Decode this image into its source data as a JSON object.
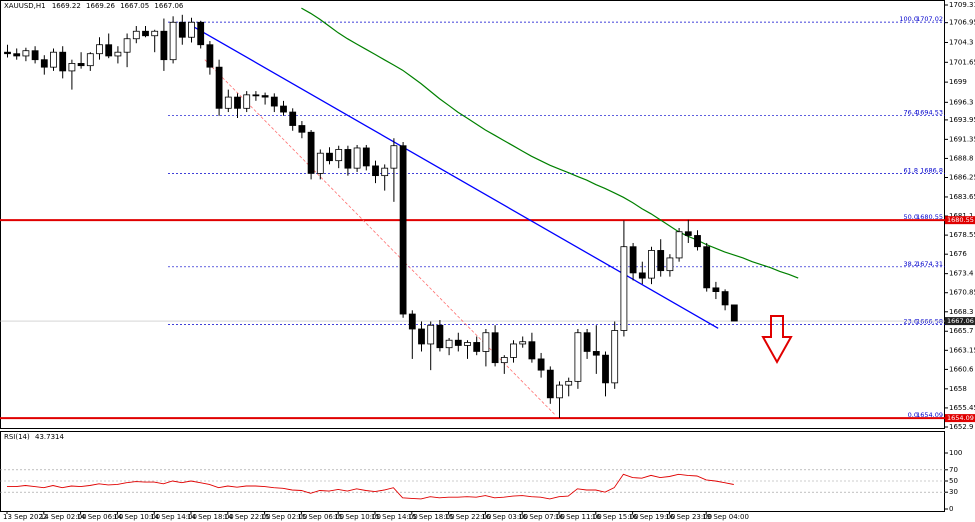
{
  "chart_data": {
    "type": "candlestick",
    "symbol": "XAUUSD,H1",
    "candles": [
      [
        1703.0,
        1704.0,
        1702.3,
        1702.8
      ],
      [
        1702.8,
        1703.5,
        1702.0,
        1702.5
      ],
      [
        1702.5,
        1703.6,
        1701.8,
        1703.2
      ],
      [
        1703.2,
        1703.8,
        1701.5,
        1702.0
      ],
      [
        1702.0,
        1702.6,
        1700.0,
        1701.0
      ],
      [
        1701.0,
        1703.5,
        1700.5,
        1703.0
      ],
      [
        1703.0,
        1703.8,
        1699.5,
        1700.5
      ],
      [
        1700.5,
        1702.0,
        1698.0,
        1701.5
      ],
      [
        1701.5,
        1703.0,
        1700.8,
        1701.2
      ],
      [
        1701.2,
        1703.0,
        1700.5,
        1702.8
      ],
      [
        1702.8,
        1705.0,
        1702.0,
        1704.0
      ],
      [
        1704.0,
        1705.5,
        1702.2,
        1702.5
      ],
      [
        1702.5,
        1703.8,
        1701.5,
        1703.0
      ],
      [
        1703.0,
        1705.5,
        1701.0,
        1704.8
      ],
      [
        1704.8,
        1706.5,
        1704.2,
        1705.8
      ],
      [
        1705.8,
        1706.5,
        1705.0,
        1705.2
      ],
      [
        1705.2,
        1706.0,
        1703.0,
        1705.8
      ],
      [
        1705.8,
        1707.5,
        1700.5,
        1702.0
      ],
      [
        1702.0,
        1707.8,
        1701.5,
        1707.0
      ],
      [
        1707.0,
        1708.0,
        1704.0,
        1705.0
      ],
      [
        1705.0,
        1707.6,
        1704.3,
        1707.0
      ],
      [
        1707.0,
        1707.2,
        1703.5,
        1704.0
      ],
      [
        1704.0,
        1704.5,
        1700.0,
        1701.0
      ],
      [
        1701.0,
        1702.0,
        1694.5,
        1695.5
      ],
      [
        1695.5,
        1698.0,
        1695.0,
        1697.0
      ],
      [
        1697.0,
        1697.5,
        1694.2,
        1695.5
      ],
      [
        1695.5,
        1697.8,
        1695.0,
        1697.3
      ],
      [
        1697.3,
        1697.8,
        1696.5,
        1697.2
      ],
      [
        1697.2,
        1697.6,
        1696.0,
        1697.0
      ],
      [
        1697.0,
        1697.5,
        1695.0,
        1695.8
      ],
      [
        1695.8,
        1696.5,
        1694.5,
        1695.0
      ],
      [
        1695.0,
        1695.5,
        1692.5,
        1693.2
      ],
      [
        1693.2,
        1693.8,
        1691.5,
        1692.3
      ],
      [
        1692.3,
        1692.6,
        1686.0,
        1686.8
      ],
      [
        1686.8,
        1690.0,
        1686.0,
        1689.5
      ],
      [
        1689.5,
        1690.3,
        1688.0,
        1688.5
      ],
      [
        1688.5,
        1690.5,
        1687.5,
        1690.0
      ],
      [
        1690.0,
        1690.5,
        1686.5,
        1687.5
      ],
      [
        1687.5,
        1690.6,
        1687.0,
        1690.2
      ],
      [
        1690.2,
        1690.6,
        1687.2,
        1687.8
      ],
      [
        1687.8,
        1688.5,
        1685.5,
        1686.5
      ],
      [
        1686.5,
        1688.0,
        1684.5,
        1687.5
      ],
      [
        1687.5,
        1691.5,
        1683.0,
        1690.5
      ],
      [
        1690.5,
        1691.0,
        1667.5,
        1668.0
      ],
      [
        1668.0,
        1668.5,
        1662.0,
        1666.0
      ],
      [
        1666.0,
        1667.0,
        1663.0,
        1664.0
      ],
      [
        1664.0,
        1667.0,
        1660.5,
        1666.5
      ],
      [
        1666.5,
        1667.2,
        1663.0,
        1663.5
      ],
      [
        1663.5,
        1664.8,
        1662.5,
        1664.5
      ],
      [
        1664.5,
        1665.5,
        1663.0,
        1663.8
      ],
      [
        1663.8,
        1664.5,
        1662.0,
        1664.2
      ],
      [
        1664.2,
        1665.0,
        1662.5,
        1663.0
      ],
      [
        1663.0,
        1666.0,
        1661.0,
        1665.5
      ],
      [
        1665.5,
        1666.5,
        1661.0,
        1661.5
      ],
      [
        1661.5,
        1662.5,
        1660.0,
        1662.2
      ],
      [
        1662.2,
        1664.5,
        1661.5,
        1664.0
      ],
      [
        1664.0,
        1665.0,
        1663.5,
        1664.3
      ],
      [
        1664.3,
        1665.5,
        1661.5,
        1662.0
      ],
      [
        1662.0,
        1662.8,
        1659.5,
        1660.5
      ],
      [
        1660.5,
        1661.0,
        1656.0,
        1656.8
      ],
      [
        1656.8,
        1659.0,
        1654.1,
        1658.5
      ],
      [
        1658.5,
        1659.5,
        1657.0,
        1659.0
      ],
      [
        1659.0,
        1666.0,
        1658.0,
        1665.5
      ],
      [
        1665.5,
        1666.0,
        1662.0,
        1663.0
      ],
      [
        1663.0,
        1666.5,
        1660.0,
        1662.5
      ],
      [
        1662.5,
        1663.0,
        1657.0,
        1658.8
      ],
      [
        1658.8,
        1667.0,
        1658.0,
        1665.8
      ],
      [
        1665.8,
        1680.5,
        1665.0,
        1677.0
      ],
      [
        1677.0,
        1677.5,
        1672.5,
        1673.5
      ],
      [
        1673.5,
        1675.0,
        1672.0,
        1672.8
      ],
      [
        1672.8,
        1677.0,
        1672.0,
        1676.5
      ],
      [
        1676.5,
        1678.0,
        1673.0,
        1673.8
      ],
      [
        1673.8,
        1676.0,
        1673.0,
        1675.5
      ],
      [
        1675.5,
        1679.5,
        1675.0,
        1679.0
      ],
      [
        1679.0,
        1680.6,
        1677.5,
        1678.5
      ],
      [
        1678.5,
        1679.2,
        1676.5,
        1677.0
      ],
      [
        1677.0,
        1677.5,
        1671.0,
        1671.5
      ],
      [
        1671.5,
        1672.3,
        1670.0,
        1671.0
      ],
      [
        1671.0,
        1671.3,
        1668.5,
        1669.22
      ],
      [
        1669.22,
        1669.26,
        1667.05,
        1667.06
      ]
    ],
    "ma": [
      null,
      null,
      null,
      null,
      null,
      null,
      null,
      null,
      null,
      null,
      null,
      null,
      null,
      null,
      null,
      null,
      null,
      null,
      null,
      null,
      null,
      null,
      null,
      null,
      null,
      null,
      null,
      null,
      null,
      null,
      null,
      null,
      1708.9,
      1708.2,
      1707.4,
      1706.5,
      1705.6,
      1704.8,
      1704.1,
      1703.4,
      1702.7,
      1702.0,
      1701.3,
      1700.6,
      1699.7,
      1698.8,
      1697.8,
      1696.8,
      1695.9,
      1695.0,
      1694.2,
      1693.4,
      1692.6,
      1691.9,
      1691.2,
      1690.5,
      1689.8,
      1689.1,
      1688.5,
      1687.9,
      1687.4,
      1686.9,
      1686.4,
      1685.9,
      1685.3,
      1684.8,
      1684.2,
      1683.6,
      1682.9,
      1682.1,
      1681.4,
      1680.6,
      1679.8,
      1679.0,
      1678.4,
      1677.9,
      1677.3,
      1676.8,
      1676.3,
      1675.9,
      1675.5,
      1675.0,
      1674.6,
      1674.2,
      1673.7,
      1673.3,
      1672.8
    ],
    "ma_color": "#008000",
    "up_color": "#ffffff",
    "down_color": "#000000",
    "ylim": [
      1652.9,
      1709.31
    ],
    "yticks": [
      1709.31,
      1706.95,
      1704.3,
      1701.65,
      1699.0,
      1696.3,
      1693.95,
      1691.35,
      1688.8,
      1686.25,
      1683.65,
      1681.1,
      1678.55,
      1676.0,
      1673.4,
      1670.85,
      1668.3,
      1665.7,
      1663.15,
      1660.6,
      1658.0,
      1655.45,
      1652.9
    ],
    "xticks": [
      {
        "value": 0,
        "label": "13 Sep 2022"
      },
      {
        "value": 4,
        "label": "14 Sep 02:00"
      },
      {
        "value": 8,
        "label": "14 Sep 06:00"
      },
      {
        "value": 12,
        "label": "14 Sep 10:00"
      },
      {
        "value": 16,
        "label": "14 Sep 14:00"
      },
      {
        "value": 20,
        "label": "14 Sep 18:00"
      },
      {
        "value": 24,
        "label": "14 Sep 22:00"
      },
      {
        "value": 28,
        "label": "15 Sep 02:00"
      },
      {
        "value": 32,
        "label": "15 Sep 06:00"
      },
      {
        "value": 36,
        "label": "15 Sep 10:00"
      },
      {
        "value": 40,
        "label": "15 Sep 14:00"
      },
      {
        "value": 44,
        "label": "15 Sep 18:00"
      },
      {
        "value": 48,
        "label": "15 Sep 22:00"
      },
      {
        "value": 52,
        "label": "16 Sep 03:00"
      },
      {
        "value": 56,
        "label": "16 Sep 07:00"
      },
      {
        "value": 60,
        "label": "16 Sep 11:00"
      },
      {
        "value": 64,
        "label": "16 Sep 15:00"
      },
      {
        "value": 68,
        "label": "16 Sep 19:00"
      },
      {
        "value": 72,
        "label": "16 Sep 23:00"
      },
      {
        "value": 76,
        "label": "19 Sep 04:00"
      }
    ],
    "fib_levels": [
      {
        "level": "100.0",
        "price": 1707.02
      },
      {
        "level": "76.4",
        "price": 1694.53
      },
      {
        "level": "61.8",
        "price": 1686.8
      },
      {
        "level": "50.0",
        "price": 1680.55
      },
      {
        "level": "38.2",
        "price": 1674.31
      },
      {
        "level": "23.6",
        "price": 1666.58
      },
      {
        "level": "0.0",
        "price": 1654.09
      }
    ],
    "fib_color": "#0000cc",
    "hlines": [
      1680.55,
      1654.09
    ],
    "hline_color": "#e00000",
    "trendlines": [
      {
        "color": "#0000ff",
        "dashed": false,
        "x": [
          20,
          77.3
        ],
        "y": [
          1706.6,
          1666.1
        ]
      },
      {
        "color": "#ff7070",
        "dashed": true,
        "x": [
          21.5,
          59.6
        ],
        "y": [
          1702.0,
          1654.5
        ]
      }
    ],
    "rsi_label": "RSI(14)",
    "rsi": [
      40,
      40,
      42,
      40,
      38,
      42,
      38,
      41,
      40,
      42,
      45,
      43,
      44,
      47,
      49,
      48,
      48,
      45,
      50,
      47,
      50,
      47,
      44,
      38,
      41,
      39,
      41,
      41,
      40,
      38,
      37,
      34,
      33,
      28,
      33,
      32,
      35,
      32,
      36,
      33,
      31,
      34,
      38,
      20,
      19,
      18,
      22,
      20,
      21,
      21,
      22,
      21,
      24,
      20,
      21,
      23,
      24,
      22,
      21,
      18,
      22,
      23,
      36,
      34,
      34,
      30,
      38,
      62,
      56,
      55,
      60,
      56,
      58,
      62,
      60,
      59,
      52,
      50,
      47,
      43.7314
    ],
    "rsi_color": "#e00000",
    "rsi_ylim": [
      0,
      100
    ],
    "rsi_yticks": [
      100,
      70,
      50,
      30,
      0
    ],
    "rsi_levels": [
      70,
      50,
      30
    ]
  }
}
